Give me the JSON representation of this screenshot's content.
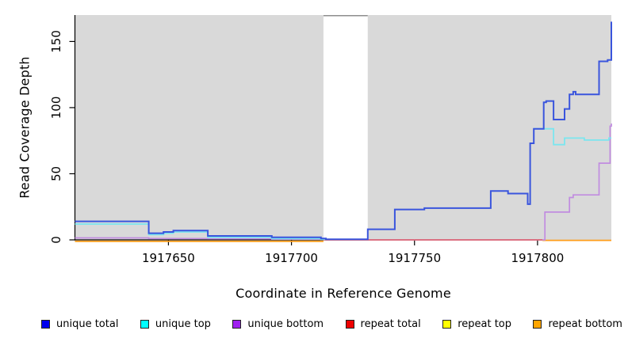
{
  "chart_data": {
    "type": "line",
    "subtype": "step-coverage",
    "title": "",
    "xlabel": "Coordinate in Reference Genome",
    "ylabel": "Read Coverage Depth",
    "xlim": [
      1917612,
      1917830
    ],
    "ylim": [
      0,
      170
    ],
    "x_ticks": [
      1917650,
      1917700,
      1917750,
      1917800
    ],
    "y_ticks": [
      0,
      50,
      100,
      150
    ],
    "grid": "off",
    "panel_background": "#d9d9d9",
    "gap_band": {
      "x0": 1917713,
      "x1": 1917731,
      "color": "#ffffff",
      "note": "white no-data band"
    },
    "series": [
      {
        "name": "repeat top",
        "color": "#ffff00",
        "width": 1.6,
        "segments": [
          {
            "pts": [
              [
                1917713,
                0
              ],
              [
                1917802,
                0
              ]
            ]
          }
        ]
      },
      {
        "name": "repeat total",
        "color": "#d75f84",
        "width": 1.7,
        "segments": [
          {
            "pts": [
              [
                1917713,
                0
              ],
              [
                1917802,
                0
              ]
            ]
          }
        ]
      },
      {
        "name": "repeat bottom",
        "color": "#ff9e1b",
        "width": 1.8,
        "segments": [
          {
            "off": 1.8,
            "pts": [
              [
                1917612,
                0
              ],
              [
                1917713,
                0
              ]
            ]
          },
          {
            "off": 0.6,
            "pts": [
              [
                1917802,
                0
              ],
              [
                1917830,
                0
              ]
            ]
          }
        ]
      },
      {
        "name": "unique bottom",
        "color": "#c18ce0",
        "width": 1.7,
        "segments": [
          {
            "pts": [
              [
                1917612,
                1.5
              ],
              [
                1917642,
                1
              ],
              [
                1917666,
                0.8
              ],
              [
                1917692,
                0.5
              ],
              [
                1917713,
                0.5
              ]
            ]
          },
          {
            "pts": [
              [
                1917802,
                0
              ],
              [
                1917803,
                21
              ],
              [
                1917813,
                32
              ],
              [
                1917814.5,
                34
              ],
              [
                1917825,
                58
              ],
              [
                1917829.5,
                86
              ],
              [
                1917830,
                88
              ]
            ]
          }
        ]
      },
      {
        "name": "unique top",
        "color": "#7be6ef",
        "width": 1.8,
        "segments": [
          {
            "pts": [
              [
                1917612,
                12
              ],
              [
                1917642,
                4
              ],
              [
                1917648,
                5
              ],
              [
                1917652,
                6
              ],
              [
                1917666,
                2
              ],
              [
                1917692,
                1
              ],
              [
                1917712,
                0.5
              ],
              [
                1917714,
                0.5
              ]
            ]
          },
          {
            "pts": [
              [
                1917798.5,
                84
              ],
              [
                1917806.5,
                72
              ],
              [
                1917811,
                77
              ],
              [
                1917819,
                75.5
              ],
              [
                1917829,
                77
              ],
              [
                1917830,
                77
              ]
            ]
          }
        ]
      },
      {
        "name": "unique total",
        "color": "#3a55dd",
        "width": 2,
        "segments": [
          {
            "pts": [
              [
                1917612,
                14
              ],
              [
                1917642,
                5
              ],
              [
                1917648,
                6
              ],
              [
                1917652,
                7
              ],
              [
                1917666,
                3
              ],
              [
                1917692,
                2
              ],
              [
                1917712,
                1
              ],
              [
                1917714,
                0.5
              ],
              [
                1917731,
                8
              ],
              [
                1917742,
                23
              ],
              [
                1917754,
                24
              ],
              [
                1917781,
                37
              ],
              [
                1917788,
                35
              ],
              [
                1917796,
                27
              ],
              [
                1917797,
                73
              ],
              [
                1917798.5,
                84
              ],
              [
                1917802.5,
                104
              ],
              [
                1917803.5,
                105
              ],
              [
                1917806.5,
                91
              ],
              [
                1917811,
                99
              ],
              [
                1917813,
                110
              ],
              [
                1917814.5,
                112
              ],
              [
                1917815.5,
                110
              ],
              [
                1917825,
                135
              ],
              [
                1917828.5,
                136
              ],
              [
                1917830,
                165
              ]
            ]
          }
        ]
      }
    ],
    "legend_position": "bottom"
  },
  "legend": [
    {
      "label": "unique total",
      "color": "#0000ee"
    },
    {
      "label": "unique top",
      "color": "#00ffff"
    },
    {
      "label": "unique bottom",
      "color": "#a020f0"
    },
    {
      "label": "repeat total",
      "color": "#ee0000"
    },
    {
      "label": "repeat top",
      "color": "#ffff00"
    },
    {
      "label": "repeat bottom",
      "color": "#ffa500"
    }
  ]
}
